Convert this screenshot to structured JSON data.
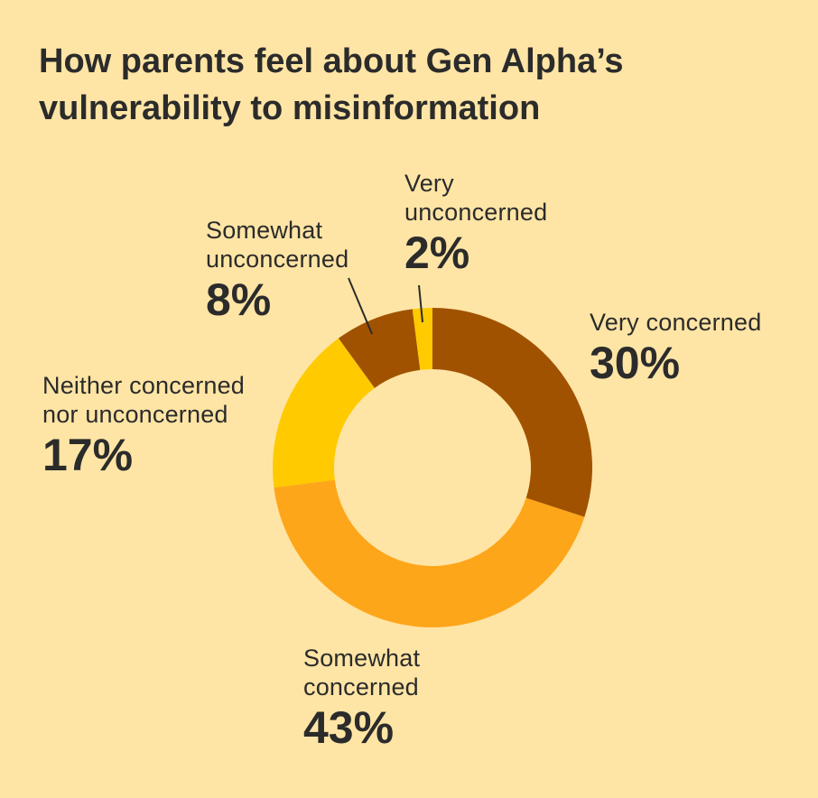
{
  "chart_data": {
    "type": "pie",
    "donut": true,
    "title_lines": [
      "How parents feel about Gen Alpha’s",
      "vulnerability to misinformation"
    ],
    "slices": [
      {
        "key": "very-concerned",
        "name_lines": [
          "Very concerned"
        ],
        "value": 30,
        "value_label": "30%",
        "color": "#A05200"
      },
      {
        "key": "somewhat-concerned",
        "name_lines": [
          "Somewhat",
          "concerned"
        ],
        "value": 43,
        "value_label": "43%",
        "color": "#FEA619"
      },
      {
        "key": "neither",
        "name_lines": [
          "Neither concerned",
          "nor unconcerned"
        ],
        "value": 17,
        "value_label": "17%",
        "color": "#FFCA00"
      },
      {
        "key": "somewhat-unconcerned",
        "name_lines": [
          "Somewhat",
          "unconcerned"
        ],
        "value": 8,
        "value_label": "8%",
        "color": "#A05200"
      },
      {
        "key": "very-unconcerned",
        "name_lines": [
          "Very",
          "unconcerned"
        ],
        "value": 2,
        "value_label": "2%",
        "color": "#FFCA00"
      }
    ],
    "legend": "none"
  }
}
